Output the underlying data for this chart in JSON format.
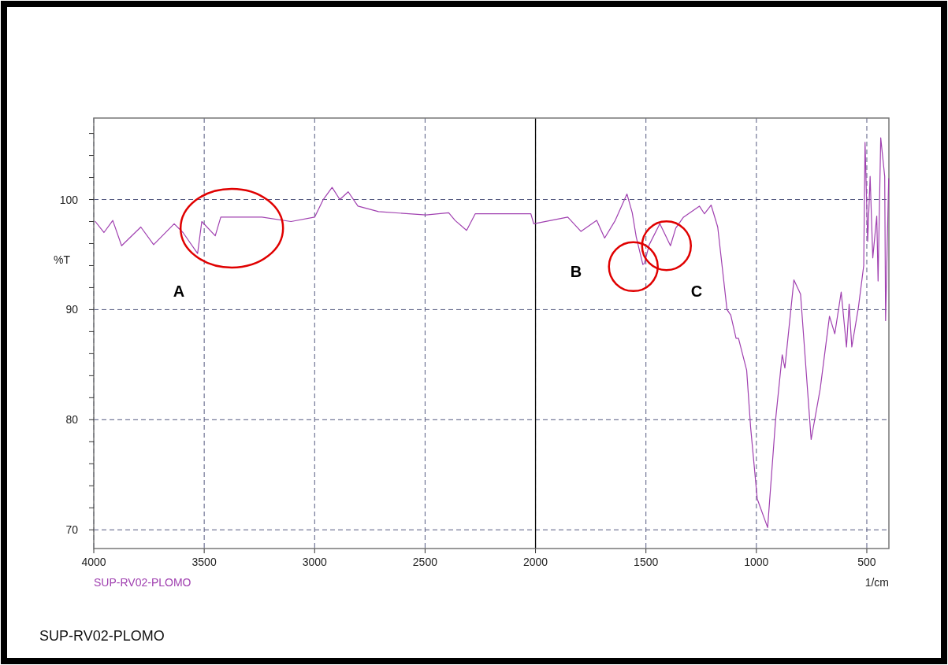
{
  "chart_data": {
    "type": "line",
    "xlabel": "1/cm",
    "ylabel": "%T",
    "x": [
      3993,
      3954,
      3914,
      3874,
      3787,
      3729,
      3636,
      3596,
      3530,
      3511,
      3450,
      3425,
      3239,
      3107,
      3000,
      2961,
      2921,
      2886,
      2848,
      2804,
      2711,
      2496,
      2393,
      2364,
      2312,
      2273,
      2021,
      2008,
      1854,
      1794,
      1723,
      1687,
      1639,
      1586,
      1562,
      1544,
      1514,
      1507,
      1485,
      1437,
      1389,
      1365,
      1330,
      1258,
      1235,
      1205,
      1175,
      1133,
      1116,
      1092,
      1081,
      1044,
      1026,
      996,
      949,
      913,
      883,
      871,
      830,
      800,
      752,
      711,
      669,
      645,
      616,
      592,
      580,
      568,
      538,
      514,
      508,
      496,
      485,
      473,
      455,
      449,
      437,
      419,
      415,
      401
    ],
    "series": [
      {
        "color": "#a040b0",
        "values": [
          98.0,
          97.0,
          98.1,
          95.8,
          97.5,
          95.9,
          97.8,
          97.0,
          95.1,
          98.0,
          96.7,
          98.4,
          98.4,
          98.0,
          98.4,
          100.0,
          101.1,
          100.0,
          100.7,
          99.4,
          98.9,
          98.6,
          98.8,
          98.1,
          97.2,
          98.7,
          98.7,
          97.8,
          98.4,
          97.1,
          98.1,
          96.5,
          98.1,
          100.5,
          98.8,
          96.6,
          94.1,
          94.2,
          95.9,
          97.8,
          95.8,
          97.4,
          98.4,
          99.4,
          98.7,
          99.5,
          97.5,
          90.0,
          89.5,
          87.4,
          87.4,
          84.5,
          79.3,
          72.8,
          70.2,
          80.0,
          85.9,
          84.7,
          92.7,
          91.4,
          78.2,
          82.8,
          89.4,
          87.8,
          91.6,
          86.6,
          90.5,
          86.6,
          90.2,
          94.0,
          105.2,
          96.2,
          102.1,
          94.7,
          98.5,
          92.6,
          105.6,
          102.1,
          89.0,
          101.9
        ]
      }
    ],
    "xlim": [
      4000,
      400
    ],
    "xticks": [
      4000,
      3500,
      3000,
      2500,
      2000,
      1500,
      1000,
      500
    ],
    "ylim": [
      68.3,
      107.4
    ],
    "yticks": [
      {
        "value": 70,
        "label": "70"
      },
      {
        "value": 72,
        "label": null
      },
      {
        "value": 74,
        "label": null
      },
      {
        "value": 76,
        "label": null
      },
      {
        "value": 78,
        "label": null
      },
      {
        "value": 80,
        "label": "80"
      },
      {
        "value": 82,
        "label": null
      },
      {
        "value": 84,
        "label": null
      },
      {
        "value": 86,
        "label": null
      },
      {
        "value": 88,
        "label": null
      },
      {
        "value": 90,
        "label": "90"
      },
      {
        "value": 92,
        "label": null
      },
      {
        "value": 94,
        "label": null
      },
      {
        "value": 96,
        "label": null
      },
      {
        "value": 98,
        "label": null
      },
      {
        "value": 100,
        "label": "100"
      },
      {
        "value": 102,
        "label": null
      },
      {
        "value": 104,
        "label": null
      },
      {
        "value": 106,
        "label": null
      }
    ],
    "grid": true,
    "line_style": "solid",
    "ref_lines": [
      {
        "axis": "x",
        "value": 2000,
        "color": "#000000"
      }
    ],
    "annotations": [
      "A",
      "B",
      "C",
      "SUP-RV02-PLOMO",
      "SUP-RV02-PLOMO"
    ]
  }
}
